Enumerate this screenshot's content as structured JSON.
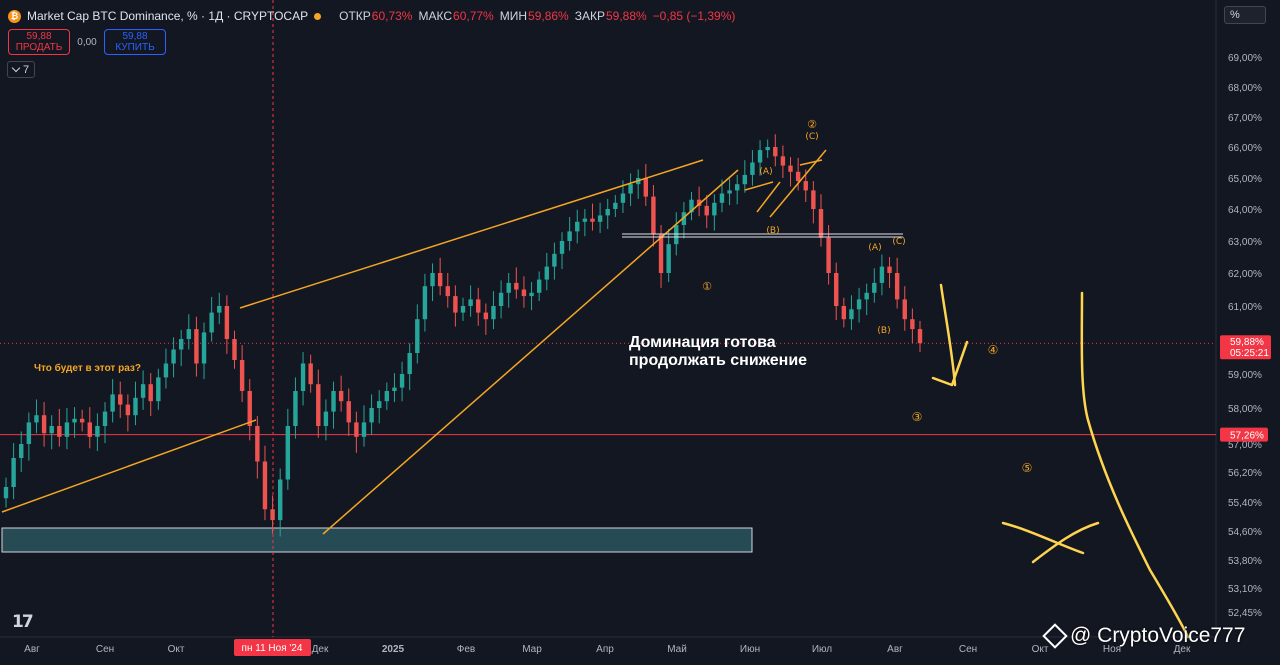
{
  "header": {
    "icon_glyph": "₿",
    "title": "Market Cap BTC Dominance, % · 1Д · CRYPTOCAP",
    "ohlc": [
      {
        "label": "ОТКР",
        "value": "60,73%"
      },
      {
        "label": "МАКС",
        "value": "60,77%"
      },
      {
        "label": "МИН",
        "value": "59,86%"
      },
      {
        "label": "ЗАКР",
        "value": "59,88%"
      }
    ],
    "change": "−0,85 (−1,39%)",
    "status_color": "#f5a623"
  },
  "trade": {
    "sell_price": "59,88",
    "sell_label": "ПРОДАТЬ",
    "spread": "0,00",
    "buy_price": "59,88",
    "buy_label": "КУПИТЬ"
  },
  "indicators": {
    "count": "7"
  },
  "scale_unit": "%",
  "watermark": "@ CryptoVoice777",
  "chart_data": {
    "type": "candlestick",
    "colors": {
      "up": "#26a69a",
      "down": "#ef5350",
      "annotation": "#f5a623",
      "marker": "#ffd54f",
      "level": "#f23645"
    },
    "y_ticks": [
      "69,00%",
      "68,00%",
      "67,00%",
      "66,00%",
      "65,00%",
      "64,00%",
      "63,00%",
      "62,00%",
      "61,00%",
      "60,00%",
      "59,00%",
      "58,00%",
      "57,00%",
      "56,20%",
      "55,40%",
      "54,60%",
      "53,80%",
      "53,10%",
      "52,45%"
    ],
    "x_ticks": [
      "Авг",
      "Сен",
      "Окт",
      "Ноя",
      "Дек",
      "2025",
      "Фев",
      "Мар",
      "Апр",
      "Май",
      "Июн",
      "Июл",
      "Авг",
      "Сен",
      "Окт",
      "Ноя",
      "Дек"
    ],
    "price_labels": [
      {
        "value": "59,88%",
        "sub": "05:25:21",
        "color": "#f23645"
      },
      {
        "value": "57,26%",
        "color": "#f23645"
      }
    ],
    "crosshair_date_label": "пн 11 Ноя '24",
    "annotations": {
      "question": "Что будет в этот раз?",
      "main_text": [
        "Доминация готова",
        "продолжать снижение"
      ],
      "wave_labels": [
        "①",
        "②",
        "(C)",
        "(A)",
        "(B)",
        "(A)",
        "(B)",
        "(C)",
        "③",
        "④",
        "⑤"
      ]
    },
    "series": [
      {
        "name": "",
        "values": [
          55.8,
          56.6,
          57.0,
          57.6,
          57.8,
          57.3,
          57.5,
          57.2,
          57.6,
          57.7,
          57.6,
          57.2,
          57.5,
          57.9,
          58.4,
          58.1,
          57.8,
          58.3,
          58.7,
          58.2,
          58.9,
          59.3,
          59.7,
          60.0,
          60.3,
          59.3,
          60.2,
          60.8,
          61.0,
          60.0,
          59.4,
          58.5,
          57.5,
          56.5,
          55.2,
          54.9,
          56.0,
          57.5,
          58.5,
          59.3,
          58.7,
          57.5,
          57.9,
          58.5,
          58.2,
          57.6,
          57.2,
          57.6,
          58.0,
          58.2,
          58.5,
          58.6,
          59.0,
          59.6,
          60.6,
          61.6,
          62.0,
          61.6,
          61.3,
          60.8,
          61.0,
          61.2,
          60.8,
          60.6,
          61.0,
          61.4,
          61.7,
          61.5,
          61.3,
          61.4,
          61.8,
          62.2,
          62.6,
          63.0,
          63.3,
          63.6,
          63.7,
          63.6,
          63.8,
          64.0,
          64.2,
          64.5,
          64.8,
          65.0,
          64.4,
          63.2,
          62.0,
          62.9,
          63.5,
          63.9,
          64.3,
          64.1,
          63.8,
          64.2,
          64.5,
          64.6,
          64.8,
          65.1,
          65.5,
          65.9,
          66.0,
          65.7,
          65.4,
          65.2,
          64.9,
          64.6,
          64.0,
          63.1,
          62.0,
          61.0,
          60.6,
          60.9,
          61.2,
          61.4,
          61.7,
          62.2,
          62.0,
          61.2,
          60.6,
          60.3,
          59.88
        ]
      }
    ]
  }
}
